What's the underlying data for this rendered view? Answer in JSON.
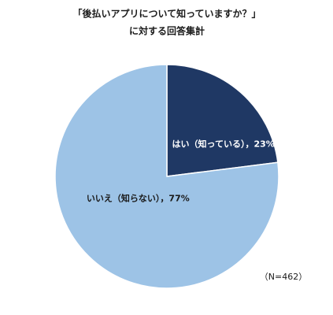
{
  "chart_data": {
    "type": "pie",
    "title": [
      "「後払いアプリについて知っていますか？」",
      "に対する回答集計"
    ],
    "values": [
      23,
      77
    ],
    "value_labels": [
      "はい（知っている），23%",
      "いいえ（知らない），77%"
    ],
    "colors": [
      "#1f3864",
      "#9dc3e6"
    ],
    "label_colors": [
      "#ffffff",
      "#1a1a1a"
    ],
    "annotation": "（N=462）"
  }
}
